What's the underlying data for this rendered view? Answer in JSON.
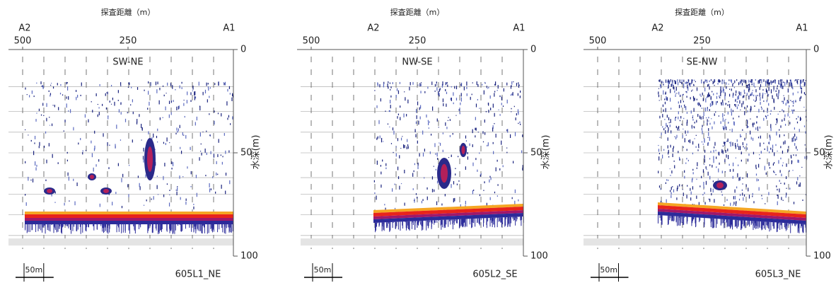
{
  "chart_data": [
    {
      "type": "echogram",
      "xlabel": "探査距離（m）",
      "ylabel": "水深(m)",
      "left_end": "A2",
      "right_end": "A1",
      "title": "SW-NE",
      "id": "605L1_NE",
      "scale_label": "50m",
      "xlim": [
        500,
        0
      ],
      "xticks": [
        500,
        250
      ],
      "ylim": [
        0,
        100
      ],
      "yticks": [
        0,
        50,
        100
      ]
    },
    {
      "type": "echogram",
      "xlabel": "探査距離（m）",
      "ylabel": "水深(m)",
      "left_end": "A2",
      "right_end": "A1",
      "title": "NW-SE",
      "id": "605L2_SE",
      "scale_label": "50m",
      "xlim": [
        500,
        0
      ],
      "xticks": [
        500,
        250
      ],
      "ylim": [
        0,
        100
      ],
      "yticks": [
        0,
        50,
        100
      ]
    },
    {
      "type": "echogram",
      "xlabel": "探査距離（m）",
      "ylabel": "水深(m)",
      "left_end": "A2",
      "right_end": "A1",
      "title": "SE-NW",
      "id": "605L3_NE",
      "scale_label": "50m",
      "xlim": [
        500,
        0
      ],
      "xticks": [
        500,
        250
      ],
      "ylim": [
        0,
        100
      ],
      "yticks": [
        0,
        50,
        100
      ]
    }
  ]
}
